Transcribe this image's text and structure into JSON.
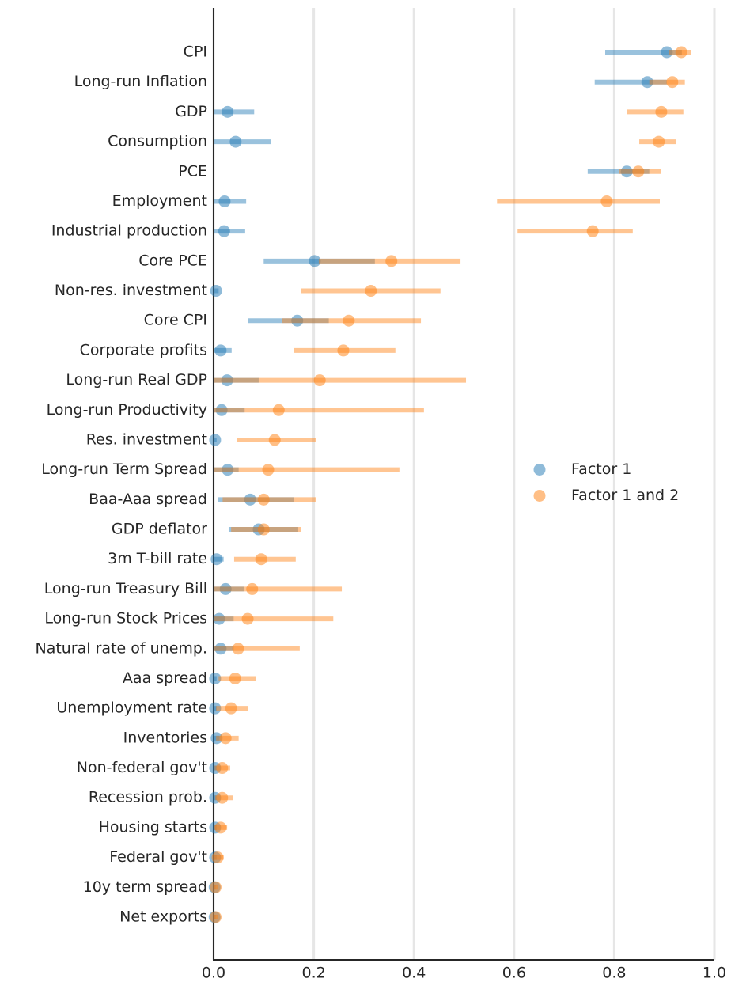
{
  "chart_data": {
    "type": "dot_interval",
    "categories": [
      "CPI",
      "Long-run Inflation",
      "GDP",
      "Consumption",
      "PCE",
      "Employment",
      "Industrial production",
      "Core PCE",
      "Non-res. investment",
      "Core CPI",
      "Corporate profits",
      "Long-run Real GDP",
      "Long-run Productivity",
      "Res. investment",
      "Long-run Term Spread",
      "Baa-Aaa spread",
      "GDP deflator",
      "3m T-bill rate",
      "Long-run Treasury Bill",
      "Long-run Stock Prices",
      "Natural rate of unemp.",
      "Aaa spread",
      "Unemployment rate",
      "Inventories",
      "Non-federal gov't",
      "Recession prob.",
      "Housing starts",
      "Federal gov't",
      "10y term spread",
      "Net exports"
    ],
    "series": [
      {
        "name": "Factor 1",
        "color": "#1f77b4",
        "values": [
          0.905,
          0.866,
          0.028,
          0.044,
          0.825,
          0.022,
          0.021,
          0.202,
          0.005,
          0.167,
          0.014,
          0.027,
          0.016,
          0.003,
          0.028,
          0.073,
          0.09,
          0.006,
          0.024,
          0.011,
          0.014,
          0.003,
          0.003,
          0.006,
          0.003,
          0.003,
          0.003,
          0.003,
          0.002,
          0.002
        ],
        "low": [
          0.782,
          0.761,
          0,
          0,
          0.747,
          0,
          0,
          0.1,
          0,
          0.068,
          0,
          0,
          0,
          0,
          0,
          0.009,
          0.03,
          0,
          0,
          0,
          0,
          0,
          0,
          0,
          0,
          0,
          0,
          0,
          0,
          0
        ],
        "high": [
          0.935,
          0.905,
          0.081,
          0.115,
          0.87,
          0.065,
          0.063,
          0.322,
          0.01,
          0.23,
          0.036,
          0.09,
          0.062,
          0.006,
          0.05,
          0.16,
          0.169,
          0.02,
          0.06,
          0.04,
          0.04,
          0.006,
          0.006,
          0.012,
          0.006,
          0.006,
          0.006,
          0.006,
          0.004,
          0.004
        ]
      },
      {
        "name": "Factor 1 and 2",
        "color": "#ff7f0e",
        "values": [
          0.934,
          0.916,
          0.894,
          0.889,
          0.848,
          0.785,
          0.757,
          0.355,
          0.314,
          0.27,
          0.259,
          0.212,
          0.13,
          0.122,
          0.109,
          0.1,
          0.1,
          0.095,
          0.077,
          0.068,
          0.049,
          0.043,
          0.035,
          0.024,
          0.017,
          0.017,
          0.014,
          0.008,
          0.004,
          0.004
        ],
        "low": [
          0.91,
          0.87,
          0.826,
          0.85,
          0.81,
          0.566,
          0.607,
          0.21,
          0.175,
          0.136,
          0.161,
          0,
          0,
          0.046,
          0,
          0.018,
          0.035,
          0.041,
          0,
          0,
          0,
          0.01,
          0.005,
          0.005,
          0.002,
          0.003,
          0.002,
          0.001,
          0,
          0
        ],
        "high": [
          0.953,
          0.941,
          0.938,
          0.923,
          0.894,
          0.891,
          0.837,
          0.493,
          0.453,
          0.414,
          0.363,
          0.504,
          0.42,
          0.205,
          0.371,
          0.205,
          0.175,
          0.164,
          0.256,
          0.239,
          0.172,
          0.085,
          0.068,
          0.05,
          0.033,
          0.038,
          0.027,
          0.02,
          0.008,
          0.008
        ]
      }
    ],
    "xlim": [
      0,
      1
    ],
    "xticks": [
      {
        "value": 0,
        "label": "0.0"
      },
      {
        "value": 0.2,
        "label": "0.2"
      },
      {
        "value": 0.4,
        "label": "0.4"
      },
      {
        "value": 0.6,
        "label": "0.6"
      },
      {
        "value": 0.8,
        "label": "0.8"
      },
      {
        "value": 1,
        "label": "1.0"
      }
    ],
    "grid": true,
    "legend": "center right"
  }
}
